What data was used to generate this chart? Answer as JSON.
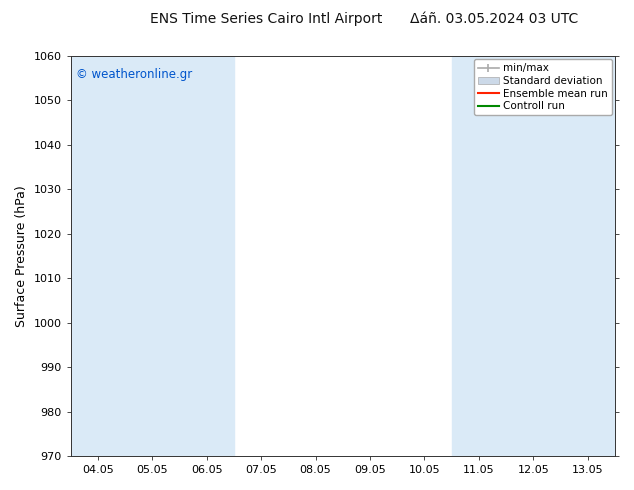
{
  "title_left": "ENS Time Series Cairo Intl Airport",
  "title_right": "Δáñ. 03.05.2024 03 UTC",
  "ylabel": "Surface Pressure (hPa)",
  "ylim": [
    970,
    1060
  ],
  "yticks": [
    970,
    980,
    990,
    1000,
    1010,
    1020,
    1030,
    1040,
    1050,
    1060
  ],
  "xtick_labels": [
    "04.05",
    "05.05",
    "06.05",
    "07.05",
    "08.05",
    "09.05",
    "10.05",
    "11.05",
    "12.05",
    "13.05"
  ],
  "xtick_positions": [
    0,
    1,
    2,
    3,
    4,
    5,
    6,
    7,
    8,
    9
  ],
  "xlim": [
    -0.5,
    9.5
  ],
  "shaded_bands": [
    {
      "xmin": -0.5,
      "xmax": 2.5,
      "color": "#daeaf7"
    },
    {
      "xmin": 6.5,
      "xmax": 9.5,
      "color": "#daeaf7"
    }
  ],
  "copyright_text": "© weatheronline.gr",
  "copyright_color": "#0055cc",
  "legend_entries": [
    "min/max",
    "Standard deviation",
    "Ensemble mean run",
    "Controll run"
  ],
  "legend_colors_line": [
    "#aaaaaa",
    "#bbccdd",
    "#ff0000",
    "#00aa00"
  ],
  "bg_color": "#ffffff",
  "plot_bg_color": "#ffffff",
  "title_fontsize": 10,
  "tick_fontsize": 8,
  "ylabel_fontsize": 9
}
